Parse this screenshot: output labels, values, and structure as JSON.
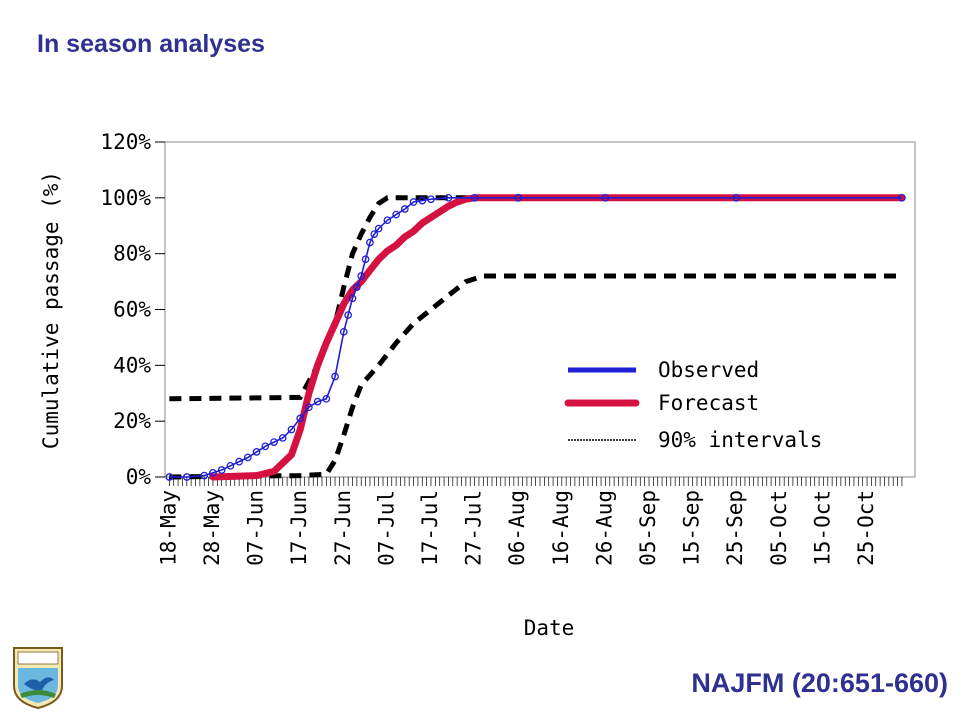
{
  "page": {
    "title": "In season analyses",
    "citation": "NAJFM (20:651-660)",
    "logo_text": "U.S. FISH & WILDLIFE SERVICE"
  },
  "colors": {
    "title": "#2e3192",
    "observed": "#1f1fd6",
    "forecast": "#d41140",
    "interval": "#000000"
  },
  "chart_data": {
    "type": "line",
    "title": "",
    "xlabel": "Date",
    "ylabel": "Cumulative passage (%)",
    "ylim": [
      0,
      120
    ],
    "yticks": [
      "0%",
      "20%",
      "40%",
      "60%",
      "80%",
      "100%",
      "120%"
    ],
    "ytick_values": [
      0,
      20,
      40,
      60,
      80,
      100,
      120
    ],
    "xticks": [
      "18-May",
      "28-May",
      "07-Jun",
      "17-Jun",
      "27-Jun",
      "07-Jul",
      "17-Jul",
      "27-Jul",
      "06-Aug",
      "16-Aug",
      "26-Aug",
      "05-Sep",
      "15-Sep",
      "25-Sep",
      "05-Oct",
      "15-Oct",
      "25-Oct"
    ],
    "x_unit": "days since 18-May",
    "xlim": [
      -1,
      171
    ],
    "grid": false,
    "legend_position": "lower-right",
    "series": [
      {
        "name": "Observed",
        "style": "line-circles",
        "x": [
          0,
          4,
          8,
          10,
          12,
          14,
          16,
          18,
          20,
          22,
          24,
          26,
          28,
          30,
          32,
          34,
          36,
          38,
          40,
          41,
          42,
          43,
          44,
          45,
          46,
          47,
          48,
          50,
          52,
          54,
          56,
          58,
          60,
          64,
          70,
          80,
          100,
          130,
          168
        ],
        "y": [
          0,
          0,
          0.5,
          1.5,
          2.5,
          4,
          5.5,
          7,
          9,
          11,
          12.5,
          14,
          17,
          21,
          25,
          27,
          28,
          36,
          52,
          58,
          64,
          68,
          72,
          78,
          84,
          87,
          89,
          92,
          94,
          96,
          98.5,
          99,
          99.5,
          100,
          100,
          100,
          100,
          100,
          100
        ]
      },
      {
        "name": "Forecast",
        "style": "thick-line",
        "x": [
          10,
          20,
          24,
          28,
          30,
          32,
          34,
          36,
          38,
          40,
          42,
          44,
          46,
          48,
          50,
          52,
          54,
          56,
          58,
          60,
          62,
          64,
          66,
          68,
          70,
          80,
          168
        ],
        "y": [
          0,
          0.5,
          2,
          8,
          17,
          30,
          40,
          48,
          55,
          62,
          67,
          70,
          74,
          78,
          81,
          83,
          86,
          88,
          91,
          93,
          95,
          97,
          98.5,
          99.5,
          100,
          100,
          100
        ]
      },
      {
        "name": "90% intervals",
        "style": "dashed",
        "segments": [
          {
            "x": [
              0,
              30,
              34,
              38,
              40,
              42,
              44,
              46,
              48,
              50,
              52,
              54,
              56,
              60,
              168
            ],
            "y": [
              28,
              28.5,
              40,
              55,
              68,
              80,
              87,
              93,
              98,
              100,
              100,
              100,
              100,
              100,
              100
            ]
          },
          {
            "x": [
              0,
              30,
              36,
              38,
              40,
              42,
              44,
              48,
              52,
              56,
              60,
              64,
              68,
              72,
              168
            ],
            "y": [
              0,
              0.5,
              1,
              6,
              15,
              25,
              33,
              40,
              48,
              55,
              60,
              65,
              70,
              72,
              72
            ]
          }
        ]
      }
    ]
  }
}
